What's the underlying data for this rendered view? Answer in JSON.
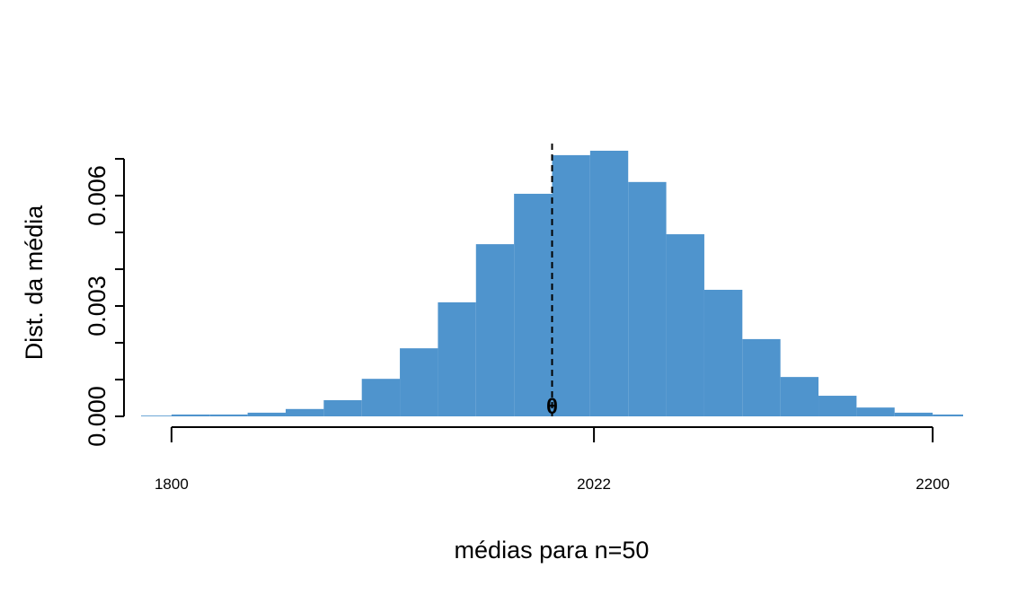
{
  "chart_data": {
    "type": "histogram",
    "xlabel": "médias para n=50",
    "ylabel": "Dist. da média",
    "bins": [
      1780,
      1800,
      1820,
      1840,
      1860,
      1880,
      1900,
      1920,
      1940,
      1960,
      1980,
      2000,
      2020,
      2040,
      2060,
      2080,
      2100,
      2120,
      2140,
      2160,
      2180,
      2200,
      2220
    ],
    "values": [
      2e-05,
      5e-05,
      5e-05,
      0.0001,
      0.0002,
      0.00044,
      0.00102,
      0.00185,
      0.0031,
      0.00468,
      0.00605,
      0.0071,
      0.00722,
      0.00637,
      0.00495,
      0.00344,
      0.0021,
      0.00107,
      0.00056,
      0.00024,
      0.0001,
      5e-05
    ],
    "color": "#4f94cd",
    "xlim": [
      1784,
      2216
    ],
    "xticks": [
      1800,
      2022,
      2200
    ],
    "ylim": [
      0,
      0.007
    ],
    "yticks": [
      {
        "value": 0,
        "label": "0.000"
      },
      {
        "value": 0.003,
        "label": "0.003"
      },
      {
        "value": 0.006,
        "label": "0.006"
      }
    ],
    "yminor_ticks": [
      0.001,
      0.002,
      0.004,
      0.005,
      0.007
    ],
    "vline": 2000,
    "annotation": {
      "text": "θ",
      "x": 2000
    }
  }
}
